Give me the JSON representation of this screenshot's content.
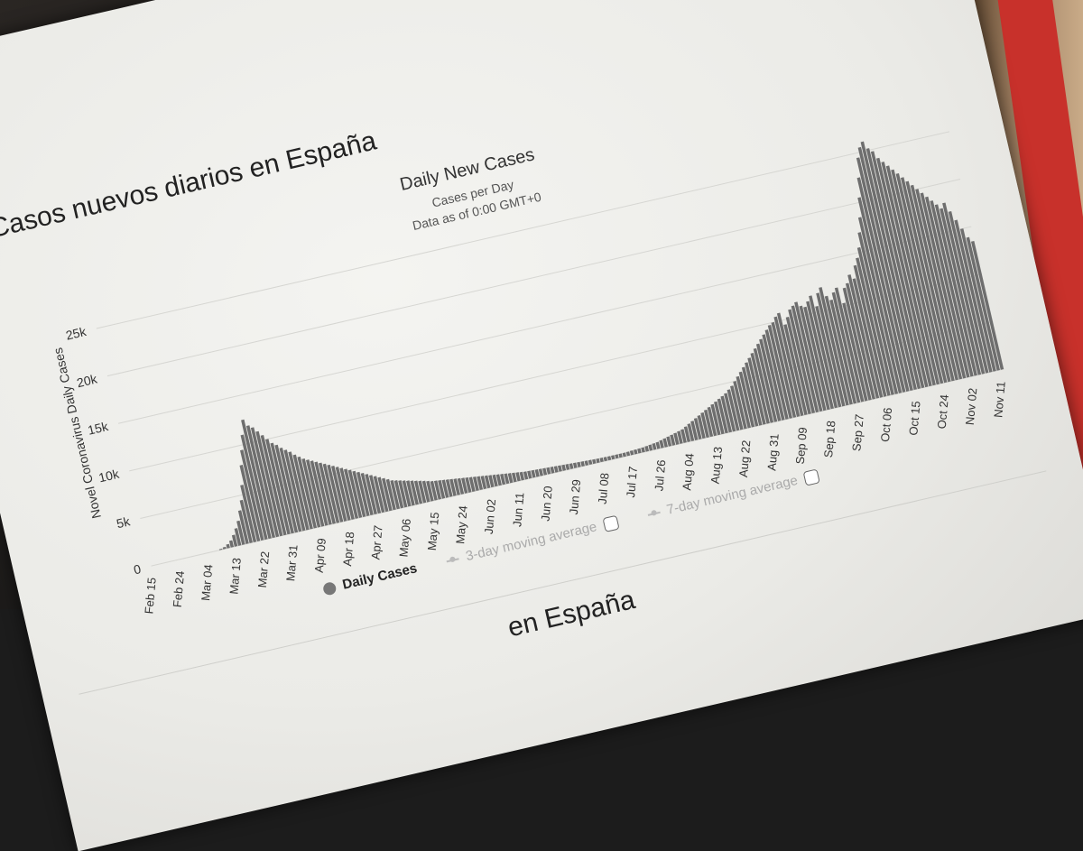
{
  "page_title": "Casos nuevos diarios en España",
  "second_title": "en España",
  "chart_data": {
    "type": "bar",
    "title": "Daily New Cases",
    "subtitle": "Cases per Day",
    "note": "Data as of 0:00 GMT+0",
    "ylabel": "Novel Coronavirus Daily Cases",
    "ylim": [
      0,
      25000
    ],
    "yticks": [
      "0",
      "5k",
      "10k",
      "15k",
      "20k",
      "25k"
    ],
    "xticks": [
      "Feb 15",
      "Feb 24",
      "Mar 04",
      "Mar 13",
      "Mar 22",
      "Mar 31",
      "Apr 09",
      "Apr 18",
      "Apr 27",
      "May 06",
      "May 15",
      "May 24",
      "Jun 02",
      "Jun 11",
      "Jun 20",
      "Jun 29",
      "Jul 08",
      "Jul 17",
      "Jul 26",
      "Aug 04",
      "Aug 13",
      "Aug 22",
      "Aug 31",
      "Sep 09",
      "Sep 18",
      "Sep 27",
      "Oct 06",
      "Oct 15",
      "Oct 24",
      "Nov 02",
      "Nov 11"
    ],
    "grid": true,
    "series": [
      {
        "name": "Daily Cases",
        "values": [
          0,
          0,
          0,
          0,
          0,
          0,
          0,
          0,
          0,
          0,
          0,
          0,
          0,
          0,
          0,
          0,
          0,
          0,
          100,
          200,
          400,
          700,
          1200,
          1800,
          2500,
          3500,
          4500,
          6000,
          8000,
          9500,
          11000,
          12500,
          11800,
          11500,
          11000,
          10500,
          10000,
          9500,
          9200,
          8800,
          8500,
          8200,
          7800,
          7500,
          7200,
          7000,
          6800,
          6600,
          6400,
          6200,
          6000,
          5800,
          5600,
          5400,
          5200,
          5000,
          4800,
          4600,
          4400,
          4200,
          4000,
          3800,
          3600,
          3400,
          3200,
          3000,
          2900,
          2800,
          2700,
          2600,
          2500,
          2400,
          2300,
          2200,
          2100,
          2000,
          1950,
          1900,
          1850,
          1800,
          1750,
          1700,
          1650,
          1600,
          1550,
          1500,
          1450,
          1400,
          1350,
          1300,
          1250,
          1200,
          1150,
          1100,
          1050,
          1000,
          950,
          900,
          850,
          800,
          780,
          760,
          740,
          720,
          700,
          680,
          660,
          640,
          620,
          600,
          580,
          560,
          540,
          520,
          500,
          480,
          460,
          440,
          430,
          420,
          410,
          400,
          400,
          400,
          400,
          400,
          420,
          440,
          460,
          480,
          500,
          550,
          600,
          650,
          700,
          800,
          900,
          1000,
          1100,
          1200,
          1300,
          1400,
          1600,
          1800,
          2000,
          2200,
          2400,
          2600,
          2800,
          3000,
          3200,
          3400,
          3600,
          3800,
          4000,
          4300,
          4600,
          5000,
          5400,
          5800,
          6200,
          6600,
          7000,
          7400,
          7800,
          8200,
          8600,
          9000,
          9400,
          9800,
          10000,
          10500,
          10800,
          9500,
          10200,
          10900,
          11200,
          11500,
          11000,
          10800,
          11300,
          11800,
          10600,
          11900,
          12400,
          11400,
          10900,
          11600,
          12000,
          10300,
          11800,
          12200,
          13000,
          12500,
          13800,
          14500,
          15500,
          17000,
          18500,
          20500,
          22500,
          24500,
          25500,
          26000,
          25200,
          24800,
          24000,
          23500,
          23000,
          22500,
          22000,
          21500,
          21000,
          20500,
          20000,
          19500,
          19000,
          18500,
          18000,
          17500,
          18000,
          17000,
          16000,
          15000,
          14000,
          13500
        ]
      },
      {
        "name": "3-day moving average"
      },
      {
        "name": "7-day moving average"
      }
    ]
  }
}
